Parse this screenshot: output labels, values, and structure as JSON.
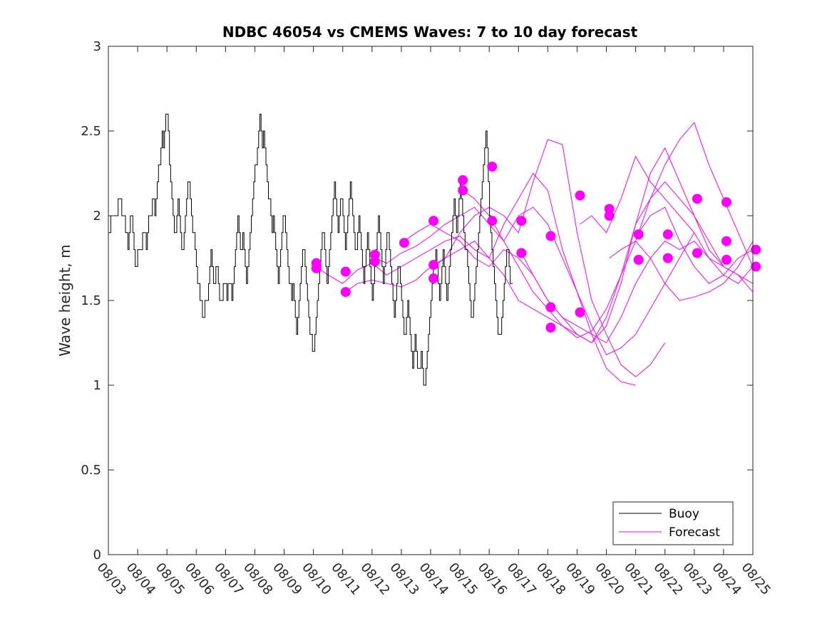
{
  "chart_data": {
    "type": "line",
    "title": "NDBC 46054 vs CMEMS Waves: 7 to 10 day forecast",
    "xlabel": "",
    "ylabel": "Wave height, m",
    "ylim": [
      0,
      3
    ],
    "yticks": [
      0,
      0.5,
      1,
      1.5,
      2,
      2.5,
      3
    ],
    "ytick_labels": [
      "0",
      "0.5",
      "1",
      "1.5",
      "2",
      "2.5",
      "3"
    ],
    "xlim_days": [
      0,
      22
    ],
    "xtick_labels": [
      "08/03",
      "08/04",
      "08/05",
      "08/06",
      "08/07",
      "08/08",
      "08/09",
      "08/10",
      "08/11",
      "08/12",
      "08/13",
      "08/14",
      "08/15",
      "08/16",
      "08/17",
      "08/18",
      "08/19",
      "08/20",
      "08/21",
      "08/22",
      "08/23",
      "08/24",
      "08/25"
    ],
    "x_unit": "days since 08/03 00:00",
    "grid": false,
    "legend_position": "bottom-right",
    "legend": [
      {
        "label": "Buoy",
        "color": "#000000"
      },
      {
        "label": "Forecast",
        "color": "#ff00ff"
      }
    ],
    "series": [
      {
        "name": "Buoy",
        "color": "#000000",
        "step_days": 0.0417,
        "x_start": 0,
        "values": [
          1.9,
          1.9,
          2.0,
          2.0,
          2.0,
          2.0,
          2.0,
          2.0,
          2.1,
          2.1,
          2.1,
          2.0,
          2.0,
          2.0,
          1.9,
          1.9,
          1.8,
          1.9,
          2.0,
          2.0,
          1.9,
          1.8,
          1.7,
          1.7,
          1.8,
          1.8,
          1.8,
          1.8,
          1.9,
          1.9,
          1.9,
          1.8,
          1.9,
          2.0,
          2.0,
          2.0,
          2.1,
          2.1,
          2.0,
          2.1,
          2.2,
          2.3,
          2.3,
          2.4,
          2.5,
          2.4,
          2.5,
          2.6,
          2.6,
          2.5,
          2.3,
          2.2,
          2.1,
          2.0,
          1.9,
          1.9,
          2.0,
          2.1,
          2.0,
          1.9,
          1.8,
          1.8,
          1.9,
          2.0,
          2.1,
          2.2,
          2.2,
          2.1,
          2.0,
          1.9,
          1.9,
          1.8,
          1.7,
          1.6,
          1.6,
          1.5,
          1.5,
          1.4,
          1.4,
          1.5,
          1.5,
          1.5,
          1.6,
          1.7,
          1.8,
          1.7,
          1.6,
          1.6,
          1.7,
          1.7,
          1.6,
          1.5,
          1.5,
          1.5,
          1.6,
          1.6,
          1.6,
          1.5,
          1.6,
          1.6,
          1.6,
          1.5,
          1.6,
          1.7,
          1.8,
          1.9,
          2.0,
          1.9,
          1.8,
          1.8,
          1.9,
          1.8,
          1.7,
          1.6,
          1.7,
          1.8,
          1.9,
          2.0,
          2.1,
          2.2,
          2.3,
          2.3,
          2.4,
          2.5,
          2.6,
          2.5,
          2.4,
          2.5,
          2.4,
          2.3,
          2.2,
          2.1,
          2.1,
          2.0,
          1.9,
          2.0,
          1.9,
          1.8,
          1.7,
          1.6,
          1.7,
          1.8,
          1.9,
          2.0,
          2.0,
          1.9,
          1.8,
          1.7,
          1.6,
          1.6,
          1.5,
          1.6,
          1.5,
          1.4,
          1.3,
          1.4,
          1.5,
          1.6,
          1.7,
          1.8,
          1.8,
          1.7,
          1.6,
          1.5,
          1.4,
          1.3,
          1.3,
          1.2,
          1.2,
          1.3,
          1.4,
          1.5,
          1.6,
          1.7,
          1.8,
          1.9,
          1.9,
          1.8,
          1.7,
          1.6,
          1.7,
          1.8,
          1.9,
          2.0,
          2.1,
          2.2,
          2.1,
          2.0,
          1.9,
          2.0,
          2.1,
          2.1,
          2.0,
          1.9,
          1.8,
          1.9,
          2.0,
          2.1,
          2.2,
          2.1,
          2.0,
          1.9,
          1.8,
          1.8,
          1.9,
          2.0,
          1.9,
          1.8,
          1.7,
          1.6,
          1.7,
          1.8,
          1.9,
          1.8,
          1.7,
          1.6,
          1.5,
          1.6,
          1.7,
          1.8,
          1.9,
          2.0,
          1.9,
          1.8,
          1.7,
          1.6,
          1.7,
          1.8,
          1.9,
          1.9,
          1.8,
          1.7,
          1.6,
          1.5,
          1.4,
          1.5,
          1.6,
          1.7,
          1.7,
          1.6,
          1.5,
          1.4,
          1.3,
          1.3,
          1.4,
          1.5,
          1.4,
          1.3,
          1.2,
          1.1,
          1.2,
          1.3,
          1.2,
          1.1,
          1.1,
          1.1,
          1.2,
          1.1,
          1.0,
          1.0,
          1.1,
          1.2,
          1.3,
          1.4,
          1.5,
          1.6,
          1.7,
          1.7,
          1.8,
          1.7,
          1.6,
          1.5,
          1.6,
          1.7,
          1.8,
          1.7,
          1.6,
          1.5,
          1.6,
          1.7,
          1.8,
          1.9,
          2.0,
          2.1,
          2.0,
          1.9,
          2.0,
          2.1,
          2.2,
          2.1,
          2.0,
          1.9,
          1.8,
          1.8,
          1.7,
          1.6,
          1.5,
          1.4,
          1.4,
          1.5,
          1.6,
          1.7,
          1.8,
          1.9,
          2.0,
          2.1,
          2.2,
          2.3,
          2.4,
          2.5,
          2.4,
          2.2,
          2.0,
          1.9,
          1.8,
          1.7,
          1.6,
          1.5,
          1.4,
          1.3,
          1.3,
          1.3,
          1.4,
          1.5,
          1.6,
          1.7,
          1.8,
          1.8,
          1.7,
          1.6,
          1.6
        ]
      },
      {
        "name": "Forecast",
        "color": "#ff00ff",
        "runs": [
          {
            "x": [
              7.1,
              7.5,
              8.0,
              8.5,
              9.0,
              9.5,
              10.0,
              10.5,
              11.0,
              11.5,
              12.0,
              12.5,
              13.0,
              13.5,
              14.0,
              14.5,
              15.0,
              15.5,
              16.0,
              16.5,
              17.0,
              17.5,
              18.0
            ],
            "y": [
              1.7,
              1.65,
              1.6,
              1.68,
              1.72,
              1.65,
              1.7,
              1.75,
              1.8,
              1.85,
              1.88,
              1.8,
              1.75,
              1.95,
              2.1,
              2.25,
              2.15,
              1.8,
              1.55,
              1.3,
              1.1,
              1.02,
              1.0
            ]
          },
          {
            "x": [
              8.1,
              8.5,
              9.0,
              9.5,
              10.0,
              10.5,
              11.0,
              11.5,
              12.0,
              12.5,
              13.0,
              13.5,
              14.0,
              14.5,
              15.0,
              15.5,
              16.0,
              16.5,
              17.0,
              17.5,
              18.0,
              18.5,
              19.0
            ],
            "y": [
              1.55,
              1.6,
              1.62,
              1.6,
              1.58,
              1.62,
              1.7,
              1.75,
              1.9,
              2.0,
              2.05,
              2.0,
              1.9,
              2.2,
              2.45,
              2.42,
              1.9,
              1.5,
              1.3,
              1.12,
              1.05,
              1.12,
              1.25
            ]
          },
          {
            "x": [
              9.1,
              9.5,
              10.0,
              10.5,
              11.0,
              11.5,
              12.0,
              12.5,
              13.0,
              13.5,
              14.0,
              14.5,
              15.0,
              15.5,
              16.0,
              16.5,
              17.0,
              17.5,
              18.0,
              18.5,
              19.0,
              19.5,
              20.0
            ],
            "y": [
              1.75,
              1.72,
              1.78,
              1.82,
              1.88,
              1.95,
              2.0,
              2.05,
              1.95,
              1.85,
              2.0,
              2.05,
              1.95,
              1.75,
              1.55,
              1.35,
              1.18,
              1.22,
              1.3,
              1.45,
              1.6,
              1.75,
              1.9
            ]
          },
          {
            "x": [
              10.1,
              10.5,
              11.0,
              11.5,
              12.0,
              12.5,
              13.0,
              13.5,
              14.0,
              14.5,
              15.0,
              15.5,
              16.0,
              16.5,
              17.0,
              17.5,
              18.0,
              18.5,
              19.0,
              19.5,
              20.0,
              20.5,
              21.0
            ],
            "y": [
              1.85,
              1.9,
              1.95,
              1.9,
              1.85,
              1.75,
              1.7,
              1.8,
              1.75,
              1.65,
              1.5,
              1.4,
              1.35,
              1.3,
              1.25,
              1.4,
              1.6,
              1.75,
              1.85,
              1.8,
              1.85,
              1.75,
              1.7
            ]
          },
          {
            "x": [
              11.1,
              11.5,
              12.0,
              12.5,
              13.0,
              13.5,
              14.0,
              14.5,
              15.0,
              15.5,
              16.0,
              16.5,
              17.0,
              17.5,
              18.0,
              18.5,
              19.0,
              19.5,
              20.0,
              20.5,
              21.0,
              21.5,
              22.0
            ],
            "y": [
              1.7,
              1.75,
              1.8,
              1.85,
              1.75,
              1.65,
              1.5,
              1.45,
              1.4,
              1.35,
              1.3,
              1.25,
              1.35,
              1.6,
              1.95,
              2.25,
              2.4,
              2.2,
              2.0,
              1.8,
              1.7,
              1.65,
              1.6
            ]
          },
          {
            "x": [
              12.1,
              12.5,
              13.0,
              13.5,
              14.0,
              14.5,
              15.0,
              15.5,
              16.0,
              16.5,
              17.0,
              17.5,
              18.0,
              18.5,
              19.0,
              19.5,
              20.0,
              20.5,
              21.0,
              21.5,
              22.0
            ],
            "y": [
              2.15,
              2.1,
              2.0,
              1.85,
              1.7,
              1.55,
              1.45,
              1.35,
              1.28,
              1.32,
              1.45,
              1.65,
              1.85,
              2.1,
              2.3,
              2.45,
              2.55,
              2.3,
              2.1,
              1.9,
              1.7
            ]
          },
          {
            "x": [
              14.1,
              14.5,
              15.0,
              15.5,
              16.0,
              16.5,
              17.0,
              17.5,
              18.0,
              18.5,
              19.0,
              19.5,
              20.0,
              20.5,
              21.0,
              21.5,
              22.0
            ],
            "y": [
              1.78,
              1.65,
              1.5,
              1.4,
              1.3,
              1.25,
              1.4,
              1.65,
              1.95,
              2.1,
              2.2,
              2.1,
              2.0,
              1.85,
              1.7,
              1.65,
              1.55
            ]
          },
          {
            "x": [
              16.1,
              16.5,
              17.0,
              17.5,
              18.0,
              18.5,
              19.0,
              19.5,
              20.0,
              20.5,
              21.0,
              21.5,
              22.0
            ],
            "y": [
              1.95,
              2.0,
              1.9,
              2.1,
              2.35,
              2.2,
              2.1,
              2.0,
              1.9,
              1.75,
              1.65,
              1.6,
              1.7
            ]
          },
          {
            "x": [
              17.1,
              17.5,
              18.0,
              18.5,
              19.0,
              19.5,
              20.0,
              20.5,
              21.0,
              21.5,
              22.0
            ],
            "y": [
              1.75,
              1.8,
              1.85,
              1.75,
              1.6,
              1.5,
              1.52,
              1.55,
              1.6,
              1.7,
              1.85
            ]
          },
          {
            "x": [
              18.1,
              18.5,
              19.0,
              19.5,
              20.0,
              20.5,
              21.0,
              21.5,
              22.0
            ],
            "y": [
              1.9,
              2.0,
              2.05,
              1.85,
              1.7,
              1.6,
              1.65,
              1.75,
              1.8
            ]
          }
        ],
        "markers": {
          "x": [
            7.1,
            7.1,
            8.1,
            8.1,
            9.1,
            9.1,
            10.1,
            11.1,
            11.1,
            11.1,
            12.1,
            12.1,
            13.1,
            13.1,
            14.1,
            14.1,
            15.1,
            15.1,
            15.1,
            16.1,
            16.1,
            17.1,
            17.1,
            18.1,
            18.1,
            19.1,
            19.1,
            20.1,
            20.1,
            21.1,
            21.1,
            21.1,
            22.1,
            22.1
          ],
          "y": [
            1.72,
            1.69,
            1.67,
            1.55,
            1.77,
            1.73,
            1.84,
            1.71,
            1.63,
            1.97,
            2.21,
            2.15,
            2.29,
            1.97,
            1.78,
            1.97,
            1.46,
            1.34,
            1.88,
            1.43,
            2.12,
            2.04,
            2.0,
            1.74,
            1.89,
            1.75,
            1.89,
            1.78,
            2.1,
            2.08,
            1.85,
            1.74,
            1.7,
            1.8
          ]
        }
      }
    ]
  }
}
